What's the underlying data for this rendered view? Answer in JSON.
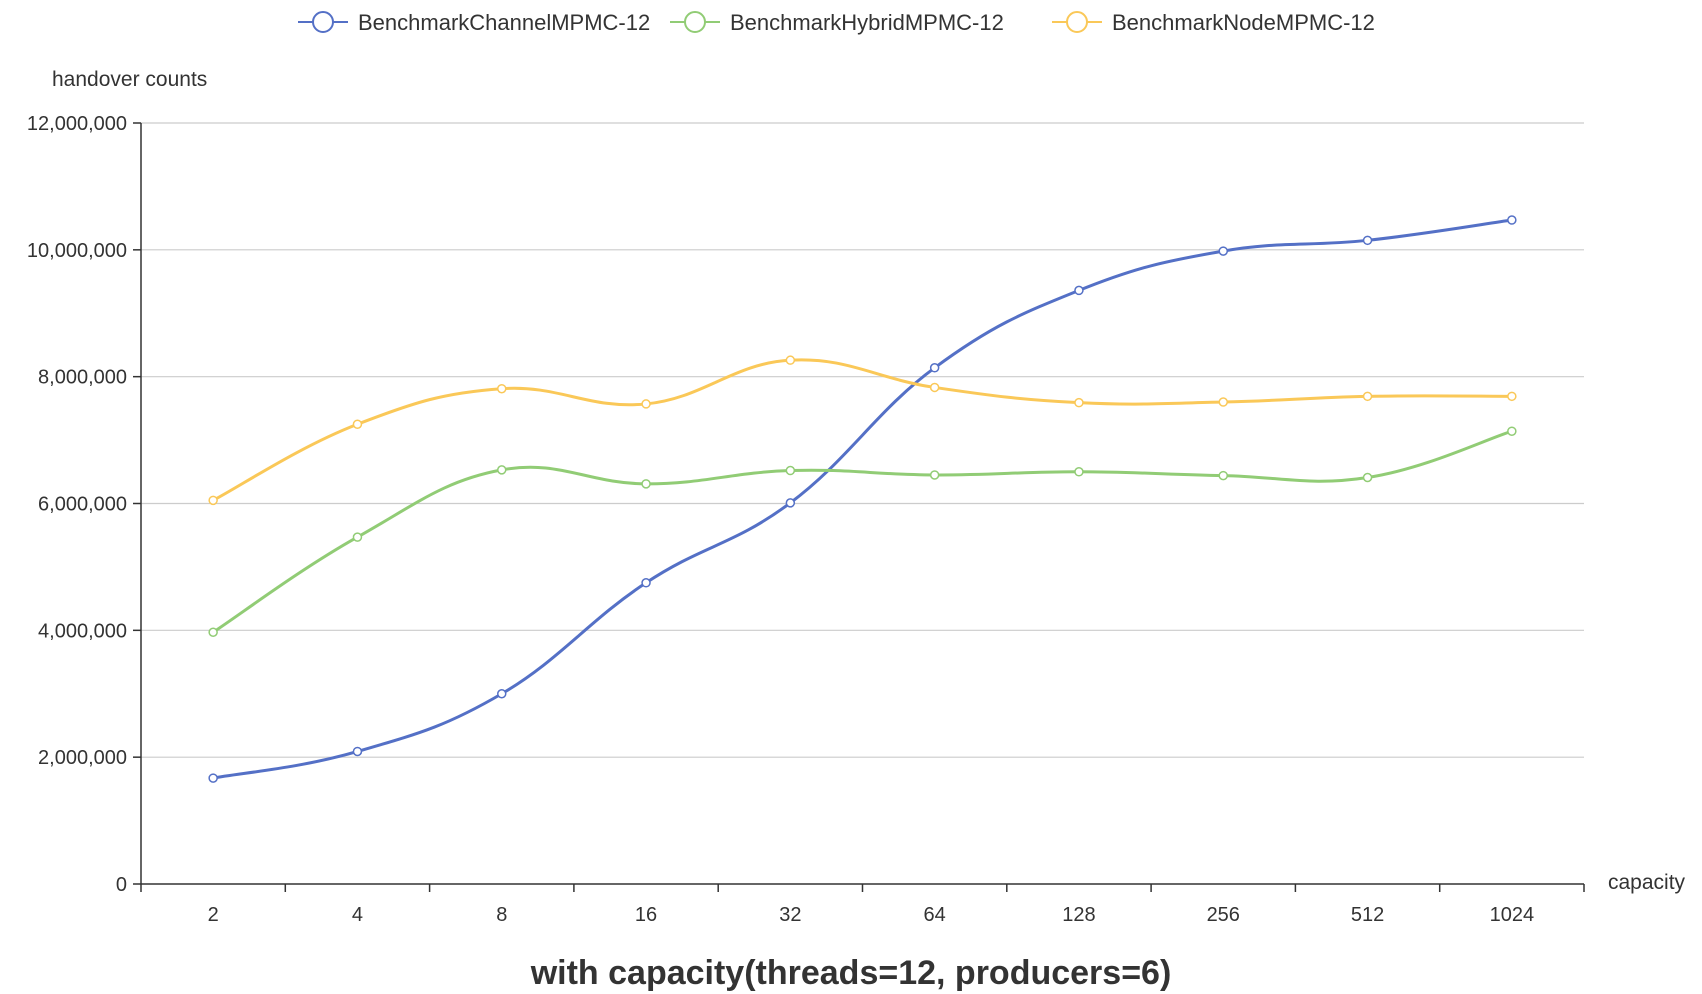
{
  "chart_data": {
    "type": "line",
    "title": "with capacity(threads=12, producers=6)",
    "xlabel": "capacity",
    "ylabel": "handover counts",
    "categories": [
      "2",
      "4",
      "8",
      "16",
      "32",
      "64",
      "128",
      "256",
      "512",
      "1024"
    ],
    "ylim": [
      0,
      12000000
    ],
    "yticks": [
      "0",
      "2,000,000",
      "4,000,000",
      "6,000,000",
      "8,000,000",
      "10,000,000",
      "12,000,000"
    ],
    "grid": true,
    "legend_position": "top-center",
    "series": [
      {
        "name": "BenchmarkChannelMPMC-12",
        "color": "#5470c6",
        "values": [
          1670000,
          2090000,
          3000000,
          4750000,
          6010000,
          8140000,
          9360000,
          9980000,
          10150000,
          10470000
        ]
      },
      {
        "name": "BenchmarkHybridMPMC-12",
        "color": "#91cc75",
        "values": [
          3970000,
          5470000,
          6530000,
          6310000,
          6520000,
          6450000,
          6500000,
          6440000,
          6410000,
          7140000
        ]
      },
      {
        "name": "BenchmarkNodeMPMC-12",
        "color": "#fac858",
        "values": [
          6050000,
          7250000,
          7810000,
          7570000,
          8260000,
          7830000,
          7590000,
          7600000,
          7690000,
          7690000
        ]
      }
    ]
  }
}
